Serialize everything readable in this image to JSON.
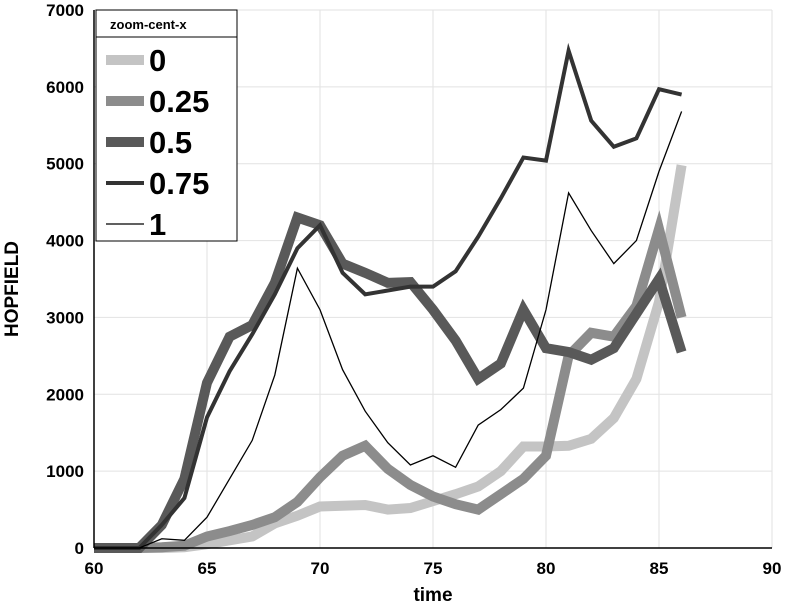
{
  "chart_data": {
    "type": "line",
    "title": "",
    "xlabel": "time",
    "ylabel": "HOPFIELD",
    "xlim": [
      60,
      90
    ],
    "ylim": [
      0,
      7000
    ],
    "xticks": [
      60,
      65,
      70,
      75,
      80,
      85,
      90
    ],
    "yticks": [
      0,
      1000,
      2000,
      3000,
      4000,
      5000,
      6000,
      7000
    ],
    "grid": true,
    "legend": {
      "title": "zoom-cent-x",
      "placement": "top-left"
    },
    "x": [
      60,
      61,
      62,
      63,
      64,
      65,
      66,
      67,
      68,
      69,
      70,
      71,
      72,
      73,
      74,
      75,
      76,
      77,
      78,
      79,
      80,
      81,
      82,
      83,
      84,
      85,
      86
    ],
    "series": [
      {
        "name": "0",
        "color": "#c4c4c4",
        "stroke": "thick",
        "values": [
          0,
          0,
          0,
          0,
          10,
          50,
          100,
          150,
          320,
          420,
          540,
          550,
          560,
          500,
          520,
          610,
          700,
          800,
          1000,
          1320,
          1320,
          1330,
          1420,
          1690,
          2200,
          3200,
          4980
        ]
      },
      {
        "name": "0.25",
        "color": "#8c8c8c",
        "stroke": "thick",
        "values": [
          0,
          0,
          0,
          10,
          30,
          150,
          220,
          300,
          400,
          600,
          920,
          1200,
          1330,
          1030,
          820,
          670,
          570,
          500,
          700,
          900,
          1200,
          2500,
          2800,
          2750,
          3150,
          4150,
          3000
        ]
      },
      {
        "name": "0.5",
        "color": "#595959",
        "stroke": "thick",
        "values": [
          0,
          0,
          0,
          300,
          900,
          2150,
          2750,
          2900,
          3450,
          4300,
          4200,
          3700,
          3580,
          3450,
          3460,
          3100,
          2700,
          2200,
          2400,
          3100,
          2600,
          2550,
          2450,
          2600,
          3050,
          3500,
          2550
        ]
      },
      {
        "name": "0.75",
        "color": "#333333",
        "stroke": "medium",
        "values": [
          0,
          0,
          0,
          300,
          650,
          1700,
          2300,
          2780,
          3300,
          3900,
          4200,
          3580,
          3300,
          3350,
          3400,
          3400,
          3600,
          4050,
          4550,
          5080,
          5040,
          6470,
          5560,
          5220,
          5330,
          5970,
          5900
        ]
      },
      {
        "name": "1",
        "color": "#000000",
        "stroke": "thin",
        "values": [
          0,
          0,
          0,
          120,
          100,
          400,
          900,
          1400,
          2250,
          3640,
          3100,
          2320,
          1780,
          1370,
          1080,
          1200,
          1050,
          1600,
          1800,
          2080,
          3100,
          4620,
          4130,
          3700,
          4000,
          4900,
          5680
        ]
      }
    ]
  }
}
